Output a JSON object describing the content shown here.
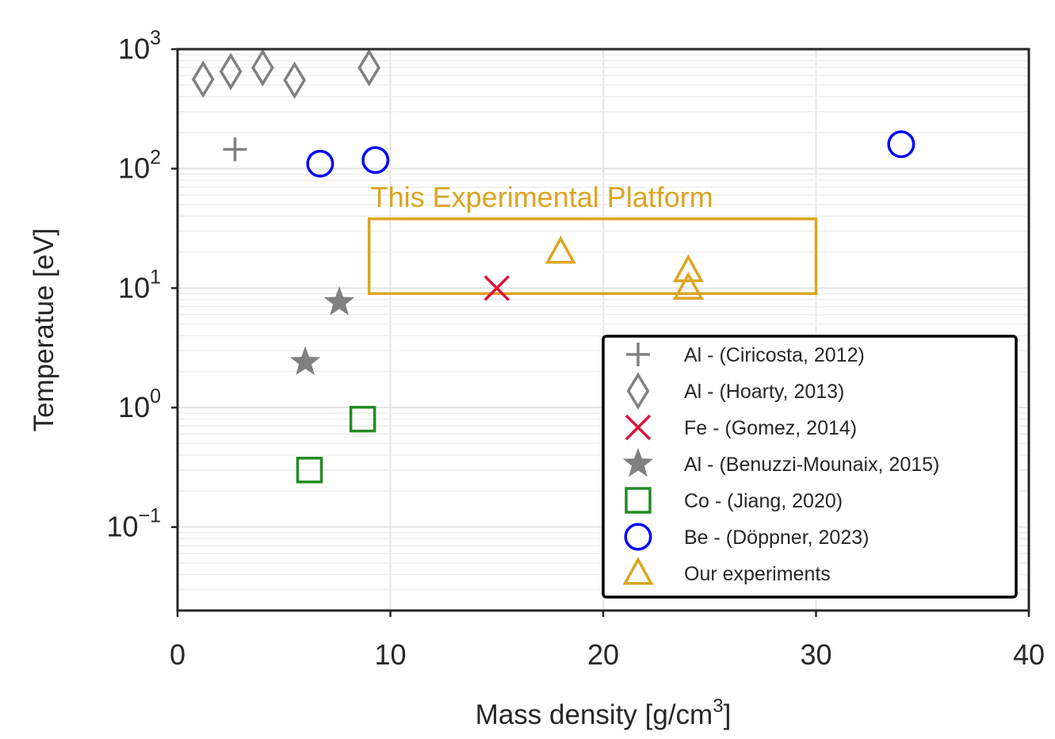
{
  "chart_data": {
    "type": "scatter",
    "xlabel": "Mass density [g/cm",
    "xlabel_sup": "3",
    "xlabel_end": "]",
    "ylabel": "Temperatue [eV]",
    "xlim": [
      0,
      40
    ],
    "ylim": [
      0.02,
      1000
    ],
    "yscale": "log",
    "grid": true,
    "x_ticks": [
      0,
      10,
      20,
      30,
      40
    ],
    "y_ticks": [
      {
        "value": 1000,
        "base": "10",
        "exp": "3"
      },
      {
        "value": 100,
        "base": "10",
        "exp": "2"
      },
      {
        "value": 10,
        "base": "10",
        "exp": "1"
      },
      {
        "value": 1,
        "base": "10",
        "exp": "0"
      },
      {
        "value": 0.1,
        "base": "10",
        "exp": "−1"
      }
    ],
    "legend_position": "lower-right",
    "series": [
      {
        "name": "Al - (Ciricosta, 2012)",
        "marker": "plus",
        "color": "#808080",
        "points": [
          [
            2.7,
            145
          ]
        ]
      },
      {
        "name": "Al - (Hoarty, 2013)",
        "marker": "thin-diamond",
        "color": "#808080",
        "points": [
          [
            1.2,
            560
          ],
          [
            2.5,
            650
          ],
          [
            4.0,
            700
          ],
          [
            5.5,
            550
          ],
          [
            9.0,
            700
          ]
        ]
      },
      {
        "name": "Fe - (Gomez, 2014)",
        "marker": "x",
        "color": "#dc143c",
        "points": [
          [
            15,
            10
          ]
        ]
      },
      {
        "name": "Al - (Benuzzi-Mounaix, 2015)",
        "marker": "star",
        "color": "#808080",
        "points": [
          [
            7.6,
            7.6
          ],
          [
            6.0,
            2.4
          ]
        ]
      },
      {
        "name": "Co - (Jiang, 2020)",
        "marker": "square",
        "color": "#228b22",
        "points": [
          [
            8.7,
            0.8
          ],
          [
            6.2,
            0.3
          ]
        ]
      },
      {
        "name": "Be - (Döppner, 2023)",
        "marker": "circle",
        "color": "#0000ff",
        "points": [
          [
            6.7,
            110
          ],
          [
            9.3,
            118
          ],
          [
            34,
            160
          ]
        ]
      },
      {
        "name": "Our experiments",
        "marker": "triangle",
        "color": "#daa520",
        "points": [
          [
            18,
            20
          ],
          [
            24,
            14
          ],
          [
            24,
            10
          ]
        ]
      }
    ],
    "annotations": [
      {
        "text": "This Experimental Platform",
        "color": "#daa520",
        "box": {
          "x": [
            9,
            30
          ],
          "y": [
            9,
            38
          ]
        }
      }
    ]
  }
}
